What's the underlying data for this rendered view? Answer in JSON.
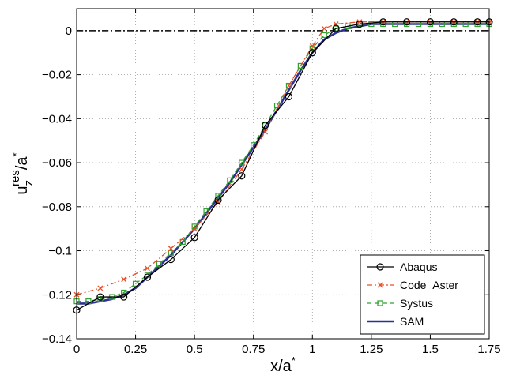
{
  "chart_data": {
    "type": "line",
    "xlabel": {
      "base": "x/a",
      "sup": "*"
    },
    "ylabel": {
      "base": "u",
      "sub": "z",
      "sup": "res",
      "tail": "/a",
      "tail_sup": "*"
    },
    "xlim": [
      0,
      1.75
    ],
    "ylim": [
      -0.14,
      0.01
    ],
    "x_ticks": [
      0,
      0.25,
      0.5,
      0.75,
      1,
      1.25,
      1.5,
      1.75
    ],
    "x_tick_labels": [
      "0",
      "0.25",
      "0.5",
      "0.75",
      "1",
      "1.25",
      "1.5",
      "1.75"
    ],
    "y_ticks": [
      -0.14,
      -0.12,
      -0.1,
      -0.08,
      -0.06,
      -0.04,
      -0.02,
      0
    ],
    "y_tick_labels": [
      "−0.14",
      "−0.12",
      "−0.1",
      "−0.08",
      "−0.06",
      "−0.04",
      "−0.02",
      "0"
    ],
    "grid": true,
    "legend_position": "bottom-right",
    "reference_line": {
      "y": 0,
      "style": "dash-dot",
      "color": "#000000"
    },
    "series": [
      {
        "name": "Abaqus",
        "color": "#000000",
        "line": "solid",
        "marker": "circle",
        "x": [
          0,
          0.1,
          0.2,
          0.3,
          0.4,
          0.5,
          0.6,
          0.7,
          0.8,
          0.9,
          1.0,
          1.1,
          1.2,
          1.3,
          1.4,
          1.5,
          1.6,
          1.7,
          1.75
        ],
        "y": [
          -0.127,
          -0.121,
          -0.121,
          -0.112,
          -0.104,
          -0.094,
          -0.077,
          -0.066,
          -0.043,
          -0.03,
          -0.01,
          0.001,
          0.003,
          0.004,
          0.004,
          0.004,
          0.004,
          0.004,
          0.004
        ]
      },
      {
        "name": "Code_Aster",
        "color": "#e8502a",
        "line": "dash-dot",
        "marker": "x",
        "x": [
          0,
          0.1,
          0.2,
          0.3,
          0.4,
          0.5,
          0.6,
          0.7,
          0.8,
          0.9,
          1.0,
          1.05,
          1.1,
          1.2,
          1.3,
          1.4,
          1.5,
          1.6,
          1.7,
          1.75
        ],
        "y": [
          -0.12,
          -0.117,
          -0.113,
          -0.108,
          -0.099,
          -0.09,
          -0.078,
          -0.063,
          -0.046,
          -0.025,
          -0.007,
          0.001,
          0.003,
          0.004,
          0.004,
          0.004,
          0.004,
          0.004,
          0.004,
          0.004
        ]
      },
      {
        "name": "Systus",
        "color": "#2ea32e",
        "line": "dashed",
        "marker": "square",
        "x": [
          0,
          0.05,
          0.1,
          0.15,
          0.2,
          0.25,
          0.3,
          0.35,
          0.4,
          0.45,
          0.5,
          0.55,
          0.6,
          0.65,
          0.7,
          0.75,
          0.8,
          0.85,
          0.9,
          0.95,
          1.0,
          1.05,
          1.1,
          1.15,
          1.2,
          1.25,
          1.3,
          1.35,
          1.4,
          1.45,
          1.5,
          1.55,
          1.6,
          1.65,
          1.7,
          1.75
        ],
        "y": [
          -0.123,
          -0.123,
          -0.122,
          -0.121,
          -0.119,
          -0.115,
          -0.111,
          -0.106,
          -0.101,
          -0.096,
          -0.089,
          -0.082,
          -0.075,
          -0.068,
          -0.06,
          -0.052,
          -0.043,
          -0.034,
          -0.025,
          -0.016,
          -0.008,
          -0.002,
          0.001,
          0.002,
          0.003,
          0.003,
          0.003,
          0.003,
          0.003,
          0.003,
          0.003,
          0.003,
          0.003,
          0.003,
          0.003,
          0.003
        ]
      },
      {
        "name": "SAM",
        "color": "#2e3192",
        "line": "solid-thick",
        "marker": "none",
        "x": [
          0,
          0.05,
          0.1,
          0.15,
          0.2,
          0.25,
          0.3,
          0.35,
          0.4,
          0.45,
          0.5,
          0.55,
          0.6,
          0.65,
          0.7,
          0.75,
          0.8,
          0.85,
          0.9,
          0.95,
          1.0,
          1.05,
          1.1,
          1.15,
          1.2,
          1.25,
          1.3,
          1.35,
          1.4,
          1.5,
          1.6,
          1.75
        ],
        "y": [
          -0.124,
          -0.124,
          -0.123,
          -0.122,
          -0.12,
          -0.117,
          -0.112,
          -0.107,
          -0.102,
          -0.096,
          -0.09,
          -0.083,
          -0.076,
          -0.069,
          -0.061,
          -0.053,
          -0.045,
          -0.036,
          -0.027,
          -0.018,
          -0.01,
          -0.004,
          -0.001,
          0.001,
          0.002,
          0.003,
          0.003,
          0.003,
          0.003,
          0.003,
          0.003,
          0.003
        ]
      }
    ]
  }
}
